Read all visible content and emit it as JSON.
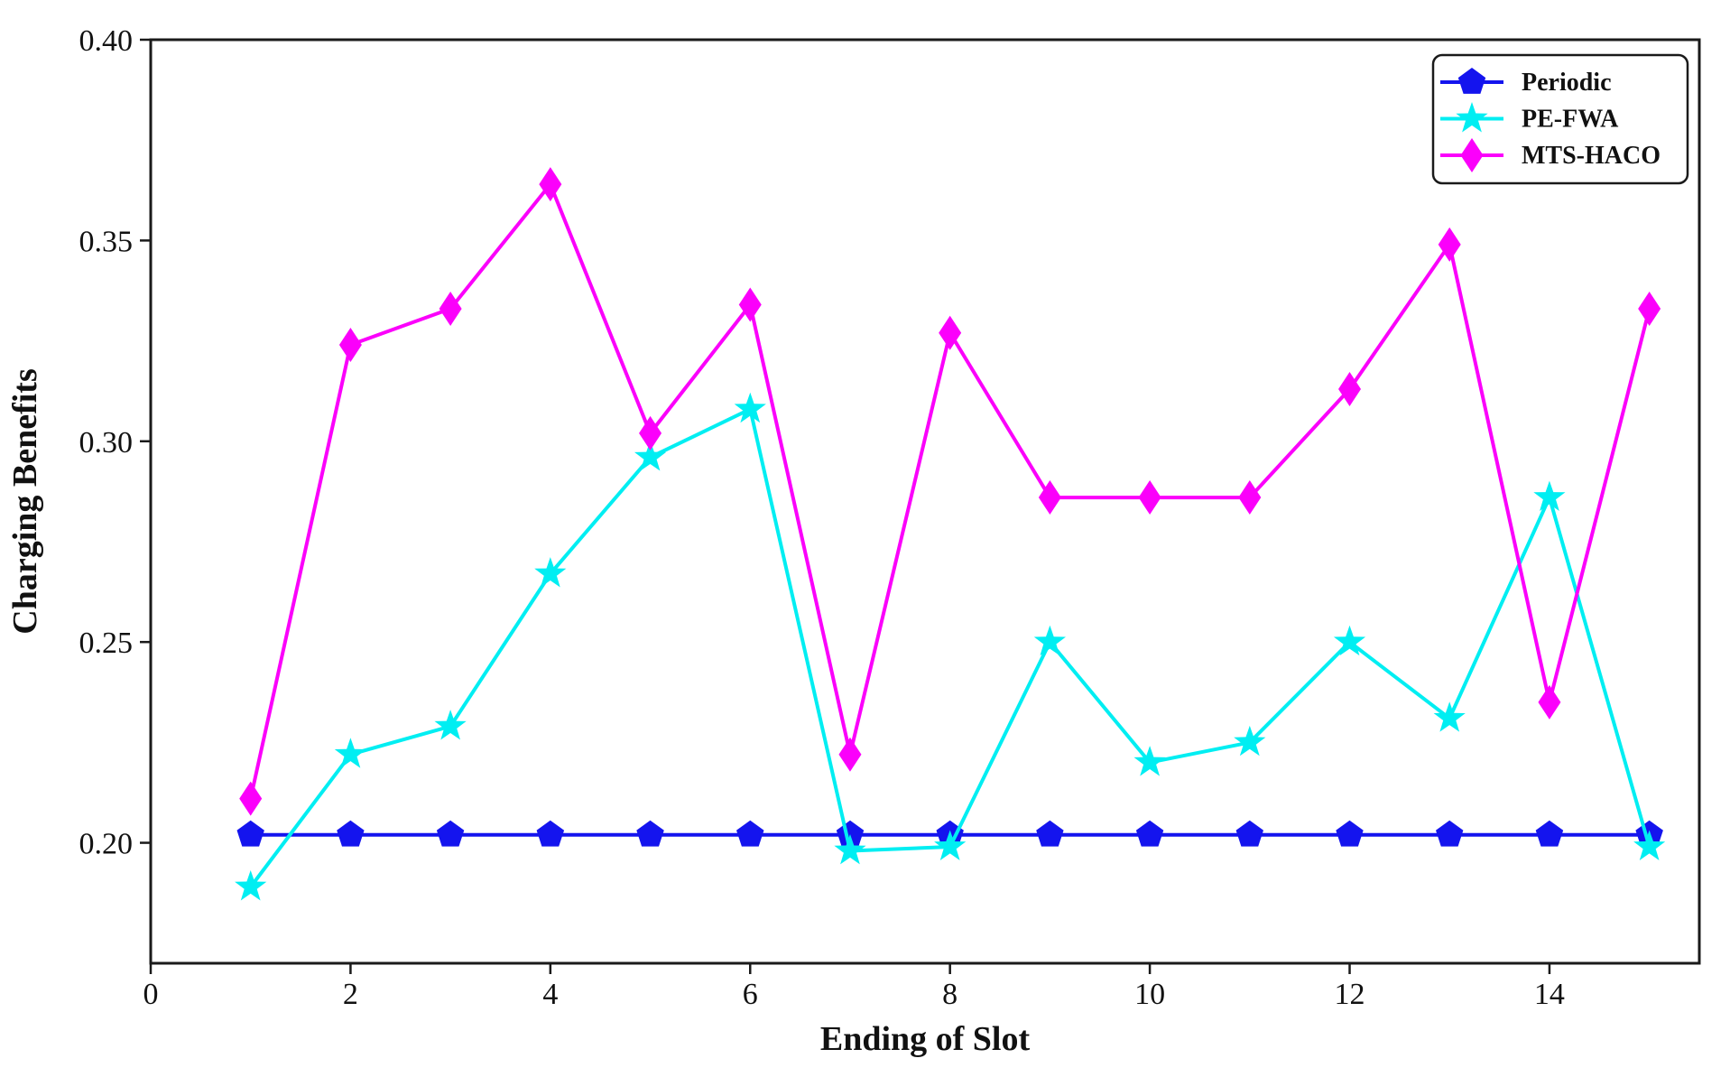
{
  "chart_data": {
    "type": "line",
    "title": "",
    "xlabel": "Ending of Slot",
    "ylabel": "Charging Benefits",
    "xlim": [
      0,
      15.5
    ],
    "ylim": [
      0.17,
      0.4
    ],
    "x_ticks": [
      0,
      2,
      4,
      6,
      8,
      10,
      12,
      14
    ],
    "y_ticks": [
      0.2,
      0.25,
      0.3,
      0.35,
      0.4
    ],
    "grid": false,
    "legend_position": "top-right",
    "x": [
      1,
      2,
      3,
      4,
      5,
      6,
      7,
      8,
      9,
      10,
      11,
      12,
      13,
      14,
      15
    ],
    "series": [
      {
        "name": "Periodic",
        "color": "#1414ee",
        "marker": "pentagon",
        "values": [
          0.202,
          0.202,
          0.202,
          0.202,
          0.202,
          0.202,
          0.202,
          0.202,
          0.202,
          0.202,
          0.202,
          0.202,
          0.202,
          0.202,
          0.202
        ]
      },
      {
        "name": "PE-FWA",
        "color": "#00eef2",
        "marker": "star",
        "values": [
          0.189,
          0.222,
          0.229,
          0.267,
          0.296,
          0.308,
          0.198,
          0.199,
          0.25,
          0.22,
          0.225,
          0.25,
          0.231,
          0.286,
          0.199
        ]
      },
      {
        "name": "MTS-HACO",
        "color": "#fb00fb",
        "marker": "diamond",
        "values": [
          0.211,
          0.324,
          0.333,
          0.364,
          0.302,
          0.334,
          0.222,
          0.327,
          0.286,
          0.286,
          0.286,
          0.313,
          0.349,
          0.235,
          0.333
        ]
      }
    ],
    "frame_color": "#1a1a1a",
    "background_color": "#ffffff"
  }
}
